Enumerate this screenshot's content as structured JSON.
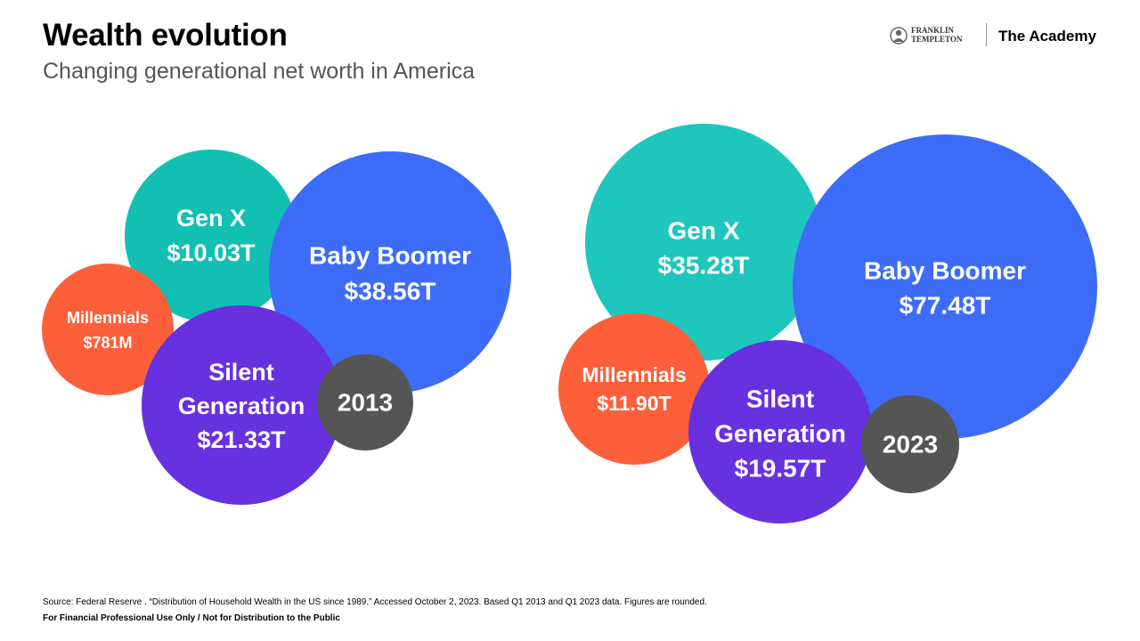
{
  "header": {
    "title": "Wealth evolution",
    "subtitle": "Changing generational net worth in America"
  },
  "brand": {
    "franklin": "FRANKLIN",
    "templeton": "TEMPLETON",
    "academy": "The Academy"
  },
  "chart_data": [
    {
      "type": "bubble",
      "year_label": "2013",
      "bubbles": [
        {
          "generation": "Gen X",
          "value_label": "$10.03T",
          "value_trillions": 10.03,
          "color": "#12BFB3"
        },
        {
          "generation": "Baby Boomer",
          "value_label": "$38.56T",
          "value_trillions": 38.56,
          "color": "#3D6CF8"
        },
        {
          "generation": "Millennials",
          "value_label": "$781M",
          "value_trillions": 0.000781,
          "color": "#FC5F3A"
        },
        {
          "generation": "Silent Generation",
          "value_label": "$21.33T",
          "value_trillions": 21.33,
          "color": "#6731DF"
        }
      ],
      "year_color": "#555555"
    },
    {
      "type": "bubble",
      "year_label": "2023",
      "bubbles": [
        {
          "generation": "Gen X",
          "value_label": "$35.28T",
          "value_trillions": 35.28,
          "color": "#1EC6BD"
        },
        {
          "generation": "Baby Boomer",
          "value_label": "$77.48T",
          "value_trillions": 77.48,
          "color": "#3D6CF8"
        },
        {
          "generation": "Millennials",
          "value_label": "$11.90T",
          "value_trillions": 11.9,
          "color": "#FC5F3A"
        },
        {
          "generation": "Silent Generation",
          "value_label": "$19.57T",
          "value_trillions": 19.57,
          "color": "#6731DF"
        }
      ],
      "year_color": "#555555"
    }
  ],
  "footer": {
    "source": "Source: Federal Reserve . “Distribution of Household Wealth in the US since 1989.” Accessed October 2, 2023. Based Q1 2013 and Q1 2023 data. Figures are rounded.",
    "disclaimer": "For Financial Professional Use Only / Not for Distribution to the Public"
  }
}
